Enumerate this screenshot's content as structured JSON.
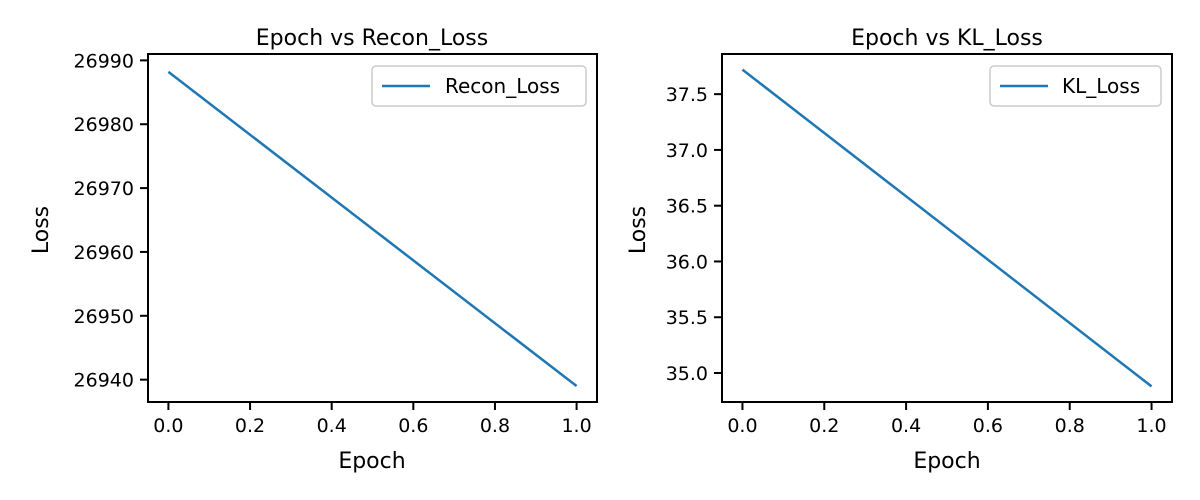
{
  "figure": {
    "background": "#ffffff",
    "line_color": "#1f77b4"
  },
  "chart_data": [
    {
      "type": "line",
      "title": "Epoch vs Recon_Loss",
      "xlabel": "Epoch",
      "ylabel": "Loss",
      "xlim": [
        -0.05,
        1.05
      ],
      "ylim": [
        26936.5,
        26991
      ],
      "xticks": [
        0.0,
        0.2,
        0.4,
        0.6,
        0.8,
        1.0
      ],
      "xtick_labels": [
        "0.0",
        "0.2",
        "0.4",
        "0.6",
        "0.8",
        "1.0"
      ],
      "yticks": [
        26940,
        26950,
        26960,
        26970,
        26980,
        26990
      ],
      "ytick_labels": [
        "26940",
        "26950",
        "26960",
        "26970",
        "26980",
        "26990"
      ],
      "grid": false,
      "legend_position": "upper-right",
      "series": [
        {
          "name": "Recon_Loss",
          "x": [
            0.0,
            1.0
          ],
          "y": [
            26988.2,
            26939.0
          ]
        }
      ]
    },
    {
      "type": "line",
      "title": "Epoch vs KL_Loss",
      "xlabel": "Epoch",
      "ylabel": "Loss",
      "xlim": [
        -0.05,
        1.05
      ],
      "ylim": [
        34.74,
        37.86
      ],
      "xticks": [
        0.0,
        0.2,
        0.4,
        0.6,
        0.8,
        1.0
      ],
      "xtick_labels": [
        "0.0",
        "0.2",
        "0.4",
        "0.6",
        "0.8",
        "1.0"
      ],
      "yticks": [
        35.0,
        35.5,
        36.0,
        36.5,
        37.0,
        37.5
      ],
      "ytick_labels": [
        "35.0",
        "35.5",
        "36.0",
        "36.5",
        "37.0",
        "37.5"
      ],
      "grid": false,
      "legend_position": "upper-right",
      "series": [
        {
          "name": "KL_Loss",
          "x": [
            0.0,
            1.0
          ],
          "y": [
            37.72,
            34.88
          ]
        }
      ]
    }
  ]
}
